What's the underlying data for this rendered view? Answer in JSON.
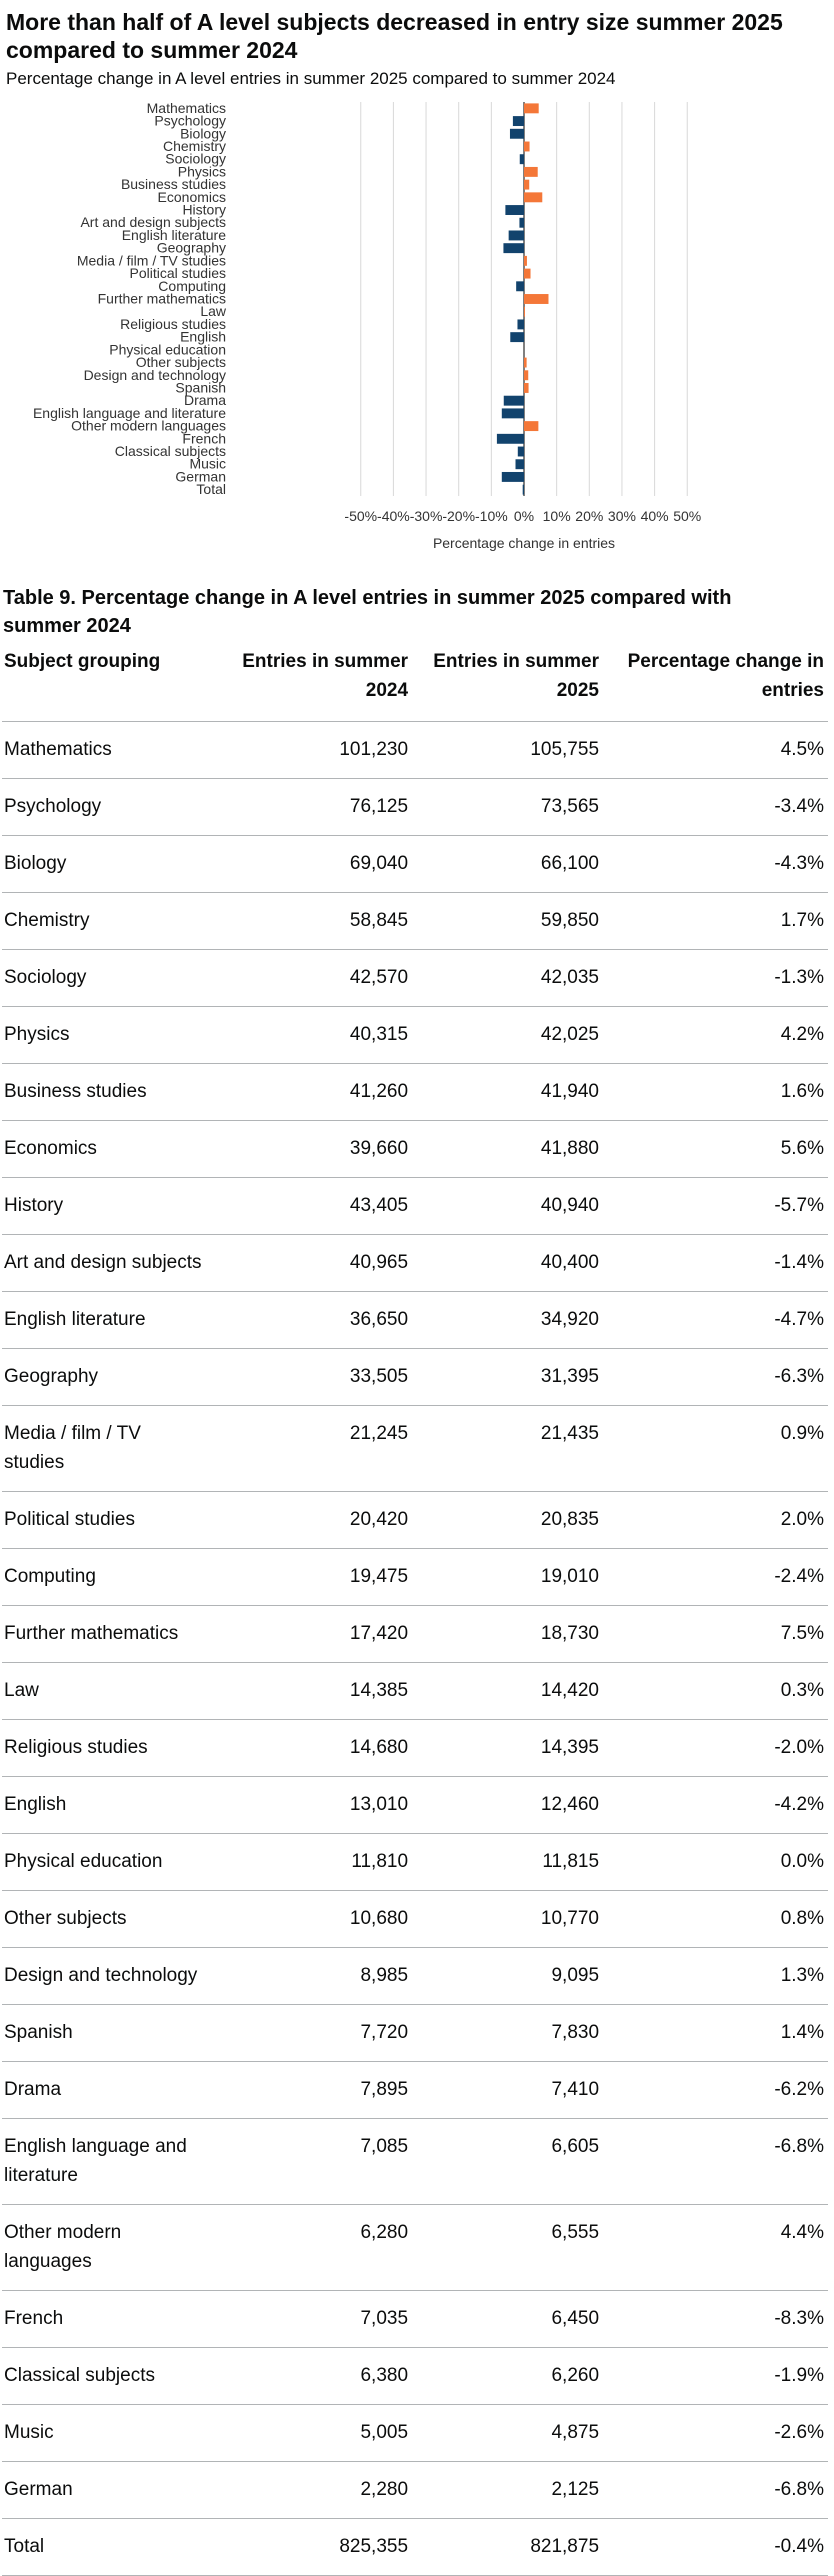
{
  "chart_data": {
    "type": "bar",
    "orientation": "horizontal",
    "title": "More than half of A level subjects decreased in entry size summer 2025 compared to summer 2024",
    "subtitle": "Percentage change in A level entries in summer 2025 compared to summer 2024",
    "xlabel": "Percentage change in entries",
    "ylabel": "",
    "xlim": [
      -55,
      55
    ],
    "ticks": [
      -50,
      -40,
      -30,
      -20,
      -10,
      0,
      10,
      20,
      30,
      40,
      50
    ],
    "tick_labels": [
      "-50%",
      "-40%",
      "-30%",
      "-20%",
      "-10%",
      "0%",
      "10%",
      "20%",
      "30%",
      "40%",
      "50%"
    ],
    "grid": true,
    "colors": {
      "positive": "#f47738",
      "negative": "#12436d"
    },
    "categories": [
      "Mathematics",
      "Psychology",
      "Biology",
      "Chemistry",
      "Sociology",
      "Physics",
      "Business studies",
      "Economics",
      "History",
      "Art and design subjects",
      "English literature",
      "Geography",
      "Media / film / TV studies",
      "Political studies",
      "Computing",
      "Further mathematics",
      "Law",
      "Religious studies",
      "English",
      "Physical education",
      "Other subjects",
      "Design and technology",
      "Spanish",
      "Drama",
      "English language and literature",
      "Other modern languages",
      "French",
      "Classical subjects",
      "Music",
      "German",
      "Total"
    ],
    "values": [
      4.5,
      -3.4,
      -4.3,
      1.7,
      -1.3,
      4.2,
      1.6,
      5.6,
      -5.7,
      -1.4,
      -4.7,
      -6.3,
      0.9,
      2.0,
      -2.4,
      7.5,
      0.3,
      -2.0,
      -4.2,
      0.0,
      0.8,
      1.3,
      1.4,
      -6.2,
      -6.8,
      4.4,
      -8.3,
      -1.9,
      -2.6,
      -6.8,
      -0.4
    ]
  },
  "table": {
    "caption": "Table 9. Percentage change in A level entries in summer 2025 compared with summer 2024",
    "headers": [
      "Subject grouping",
      "Entries in summer 2024",
      "Entries in summer 2025",
      "Percentage change in entries"
    ],
    "rows": [
      [
        "Mathematics",
        "101,230",
        "105,755",
        "4.5%"
      ],
      [
        "Psychology",
        "76,125",
        "73,565",
        "-3.4%"
      ],
      [
        "Biology",
        "69,040",
        "66,100",
        "-4.3%"
      ],
      [
        "Chemistry",
        "58,845",
        "59,850",
        "1.7%"
      ],
      [
        "Sociology",
        "42,570",
        "42,035",
        "-1.3%"
      ],
      [
        "Physics",
        "40,315",
        "42,025",
        "4.2%"
      ],
      [
        "Business studies",
        "41,260",
        "41,940",
        "1.6%"
      ],
      [
        "Economics",
        "39,660",
        "41,880",
        "5.6%"
      ],
      [
        "History",
        "43,405",
        "40,940",
        "-5.7%"
      ],
      [
        "Art and design subjects",
        "40,965",
        "40,400",
        "-1.4%"
      ],
      [
        "English literature",
        "36,650",
        "34,920",
        "-4.7%"
      ],
      [
        "Geography",
        "33,505",
        "31,395",
        "-6.3%"
      ],
      [
        "Media / film / TV studies",
        "21,245",
        "21,435",
        "0.9%"
      ],
      [
        "Political studies",
        "20,420",
        "20,835",
        "2.0%"
      ],
      [
        "Computing",
        "19,475",
        "19,010",
        "-2.4%"
      ],
      [
        "Further mathematics",
        "17,420",
        "18,730",
        "7.5%"
      ],
      [
        "Law",
        "14,385",
        "14,420",
        "0.3%"
      ],
      [
        "Religious studies",
        "14,680",
        "14,395",
        "-2.0%"
      ],
      [
        "English",
        "13,010",
        "12,460",
        "-4.2%"
      ],
      [
        "Physical education",
        "11,810",
        "11,815",
        "0.0%"
      ],
      [
        "Other subjects",
        "10,680",
        "10,770",
        "0.8%"
      ],
      [
        "Design and technology",
        "8,985",
        "9,095",
        "1.3%"
      ],
      [
        "Spanish",
        "7,720",
        "7,830",
        "1.4%"
      ],
      [
        "Drama",
        "7,895",
        "7,410",
        "-6.2%"
      ],
      [
        "English language and literature",
        "7,085",
        "6,605",
        "-6.8%"
      ],
      [
        "Other modern languages",
        "6,280",
        "6,555",
        "4.4%"
      ],
      [
        "French",
        "7,035",
        "6,450",
        "-8.3%"
      ],
      [
        "Classical subjects",
        "6,380",
        "6,260",
        "-1.9%"
      ],
      [
        "Music",
        "5,005",
        "4,875",
        "-2.6%"
      ],
      [
        "German",
        "2,280",
        "2,125",
        "-6.8%"
      ],
      [
        "Total",
        "825,355",
        "821,875",
        "-0.4%"
      ]
    ]
  }
}
